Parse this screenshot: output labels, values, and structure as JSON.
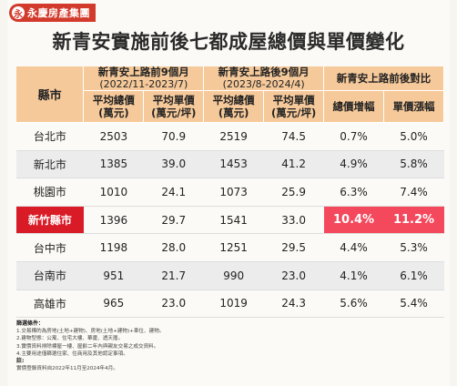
{
  "brand": {
    "mark": "永",
    "name": "永慶房產集團"
  },
  "title": "新青安實施前後七都成屋總價與單價變化",
  "table": {
    "city_header": "縣市",
    "groups": [
      {
        "line1": "新青安上路前9個月",
        "line2": "(2022/11-2023/7)"
      },
      {
        "line1": "新青安上路後9個月",
        "line2": "(2023/8-2024/4)"
      },
      {
        "line1": "新青安上路前後對比",
        "line2": ""
      }
    ],
    "cols": [
      {
        "l1": "平均總價",
        "l2": "(萬元)"
      },
      {
        "l1": "平均單價",
        "l2": "(萬元/坪)"
      },
      {
        "l1": "平均總價",
        "l2": "(萬元)"
      },
      {
        "l1": "平均單價",
        "l2": "(萬元/坪)"
      },
      {
        "l1": "總價增幅",
        "l2": ""
      },
      {
        "l1": "單價漲幅",
        "l2": ""
      }
    ],
    "rows": [
      {
        "city": "台北市",
        "v": [
          "2503",
          "70.9",
          "2519",
          "74.5",
          "0.7%",
          "5.0%"
        ]
      },
      {
        "city": "新北市",
        "v": [
          "1385",
          "39.0",
          "1453",
          "41.2",
          "4.9%",
          "5.8%"
        ]
      },
      {
        "city": "桃園市",
        "v": [
          "1010",
          "24.1",
          "1073",
          "25.9",
          "6.3%",
          "7.4%"
        ]
      },
      {
        "city": "新竹縣市",
        "v": [
          "1396",
          "29.7",
          "1541",
          "33.0",
          "10.4%",
          "11.2%"
        ]
      },
      {
        "city": "台中市",
        "v": [
          "1198",
          "28.0",
          "1251",
          "29.5",
          "4.4%",
          "5.3%"
        ]
      },
      {
        "city": "台南市",
        "v": [
          "951",
          "21.7",
          "990",
          "23.0",
          "4.1%",
          "6.1%"
        ]
      },
      {
        "city": "高雄市",
        "v": [
          "965",
          "23.0",
          "1019",
          "24.3",
          "5.6%",
          "5.4%"
        ]
      }
    ]
  },
  "notes": {
    "heading": "篩選條件：",
    "items": [
      "1.交易標的為房地(土地+建物)、房地(土地+建物)+車位、建物。",
      "2.建物型態：公寓、住宅大樓、華廈、透天厝。",
      "3.實價資料排除標屋一樓、屋齡二年內與親友交易之成交資料。",
      "4.主要用途僅篩選住家、住商用及其他認定事項。"
    ],
    "note_heading": "註:",
    "note": "實價登錄資料自2022年11月至2024年4月。"
  }
}
